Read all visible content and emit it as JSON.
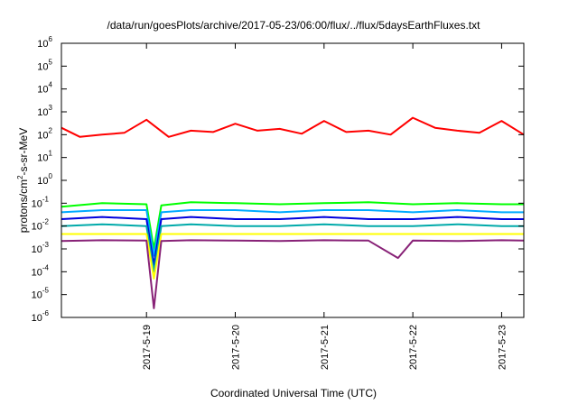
{
  "chart_data": {
    "type": "line",
    "title": "/data/run/goesPlots/archive/2017-05-23/06:00/flux/../flux/5daysEarthFluxes.txt",
    "xlabel": "Coordinated Universal Time (UTC)",
    "ylabel_parts": [
      "protons/cm",
      "2",
      "-s-sr-MeV"
    ],
    "xlim": [
      "2017-05-18 01:00",
      "2017-05-23 06:00"
    ],
    "ylim": [
      1e-06,
      1000000.0
    ],
    "yscale": "log",
    "x_ticks": [
      {
        "x": "2017-05-19 00:00",
        "label": "2017-5-19"
      },
      {
        "x": "2017-05-20 00:00",
        "label": "2017-5-20"
      },
      {
        "x": "2017-05-21 00:00",
        "label": "2017-5-21"
      },
      {
        "x": "2017-05-22 00:00",
        "label": "2017-5-22"
      },
      {
        "x": "2017-05-23 00:00",
        "label": "2017-5-23"
      }
    ],
    "y_ticks": [
      {
        "exp": "-6"
      },
      {
        "exp": "-5"
      },
      {
        "exp": "-4"
      },
      {
        "exp": "-3"
      },
      {
        "exp": "-2"
      },
      {
        "exp": "-1"
      },
      {
        "exp": "0"
      },
      {
        "exp": "1"
      },
      {
        "exp": "2"
      },
      {
        "exp": "3"
      },
      {
        "exp": "4"
      },
      {
        "exp": "5"
      },
      {
        "exp": "6"
      }
    ],
    "series": [
      {
        "color": "#ff0000",
        "x": [
          "2017-05-18 01:00",
          "2017-05-18 06:00",
          "2017-05-18 12:00",
          "2017-05-18 18:00",
          "2017-05-19 00:00",
          "2017-05-19 06:00",
          "2017-05-19 12:00",
          "2017-05-19 18:00",
          "2017-05-20 00:00",
          "2017-05-20 06:00",
          "2017-05-20 12:00",
          "2017-05-20 18:00",
          "2017-05-21 00:00",
          "2017-05-21 06:00",
          "2017-05-21 12:00",
          "2017-05-21 18:00",
          "2017-05-22 00:00",
          "2017-05-22 06:00",
          "2017-05-22 12:00",
          "2017-05-22 18:00",
          "2017-05-23 00:00",
          "2017-05-23 06:00"
        ],
        "values": [
          200,
          80,
          100,
          120,
          450,
          80,
          150,
          130,
          300,
          150,
          180,
          110,
          400,
          130,
          150,
          100,
          550,
          200,
          150,
          120,
          400,
          100
        ]
      },
      {
        "color": "#00ff00",
        "x": [
          "2017-05-18 01:00",
          "2017-05-18 12:00",
          "2017-05-19 00:00",
          "2017-05-19 02:00",
          "2017-05-19 04:00",
          "2017-05-19 12:00",
          "2017-05-20 00:00",
          "2017-05-20 12:00",
          "2017-05-21 00:00",
          "2017-05-21 12:00",
          "2017-05-22 00:00",
          "2017-05-22 12:00",
          "2017-05-23 00:00",
          "2017-05-23 06:00"
        ],
        "values": [
          0.07,
          0.1,
          0.09,
          0.001,
          0.08,
          0.11,
          0.1,
          0.09,
          0.1,
          0.11,
          0.09,
          0.1,
          0.09,
          0.09
        ]
      },
      {
        "color": "#00aaff",
        "x": [
          "2017-05-18 01:00",
          "2017-05-18 12:00",
          "2017-05-19 00:00",
          "2017-05-19 02:00",
          "2017-05-19 04:00",
          "2017-05-19 12:00",
          "2017-05-20 00:00",
          "2017-05-20 12:00",
          "2017-05-21 00:00",
          "2017-05-21 12:00",
          "2017-05-22 00:00",
          "2017-05-22 12:00",
          "2017-05-23 00:00",
          "2017-05-23 06:00"
        ],
        "values": [
          0.04,
          0.05,
          0.05,
          0.0005,
          0.04,
          0.05,
          0.05,
          0.04,
          0.05,
          0.05,
          0.04,
          0.05,
          0.04,
          0.04
        ]
      },
      {
        "color": "#0000dd",
        "x": [
          "2017-05-18 01:00",
          "2017-05-18 12:00",
          "2017-05-19 00:00",
          "2017-05-19 02:00",
          "2017-05-19 04:00",
          "2017-05-19 12:00",
          "2017-05-20 00:00",
          "2017-05-20 12:00",
          "2017-05-21 00:00",
          "2017-05-21 12:00",
          "2017-05-22 00:00",
          "2017-05-22 12:00",
          "2017-05-23 00:00",
          "2017-05-23 06:00"
        ],
        "values": [
          0.02,
          0.025,
          0.02,
          0.0002,
          0.02,
          0.025,
          0.02,
          0.02,
          0.025,
          0.02,
          0.02,
          0.025,
          0.02,
          0.02
        ]
      },
      {
        "color": "#00aaaa",
        "x": [
          "2017-05-18 01:00",
          "2017-05-18 12:00",
          "2017-05-19 00:00",
          "2017-05-19 02:00",
          "2017-05-19 04:00",
          "2017-05-19 12:00",
          "2017-05-20 00:00",
          "2017-05-20 12:00",
          "2017-05-21 00:00",
          "2017-05-21 12:00",
          "2017-05-22 00:00",
          "2017-05-22 12:00",
          "2017-05-23 00:00",
          "2017-05-23 06:00"
        ],
        "values": [
          0.01,
          0.012,
          0.01,
          0.0001,
          0.01,
          0.012,
          0.01,
          0.01,
          0.012,
          0.01,
          0.01,
          0.012,
          0.01,
          0.01
        ]
      },
      {
        "color": "#ffff00",
        "x": [
          "2017-05-18 01:00",
          "2017-05-18 12:00",
          "2017-05-19 00:00",
          "2017-05-19 02:00",
          "2017-05-19 04:00",
          "2017-05-19 12:00",
          "2017-05-20 00:00",
          "2017-05-20 12:00",
          "2017-05-21 00:00",
          "2017-05-21 12:00",
          "2017-05-22 00:00",
          "2017-05-22 12:00",
          "2017-05-23 00:00",
          "2017-05-23 06:00"
        ],
        "values": [
          0.0045,
          0.0045,
          0.0045,
          5e-05,
          0.0045,
          0.0045,
          0.0045,
          0.0045,
          0.0045,
          0.0045,
          0.0045,
          0.0045,
          0.0045,
          0.0045
        ]
      },
      {
        "color": "#882277",
        "x": [
          "2017-05-18 01:00",
          "2017-05-18 12:00",
          "2017-05-19 00:00",
          "2017-05-19 02:00",
          "2017-05-19 04:00",
          "2017-05-19 12:00",
          "2017-05-20 00:00",
          "2017-05-20 12:00",
          "2017-05-21 00:00",
          "2017-05-21 12:00",
          "2017-05-21 20:00",
          "2017-05-22 00:00",
          "2017-05-22 12:00",
          "2017-05-23 00:00",
          "2017-05-23 06:00"
        ],
        "values": [
          0.0022,
          0.0024,
          0.0023,
          2.5e-06,
          0.0022,
          0.0024,
          0.0023,
          0.0022,
          0.0024,
          0.0023,
          0.0004,
          0.0023,
          0.0022,
          0.0024,
          0.0023
        ]
      }
    ]
  }
}
